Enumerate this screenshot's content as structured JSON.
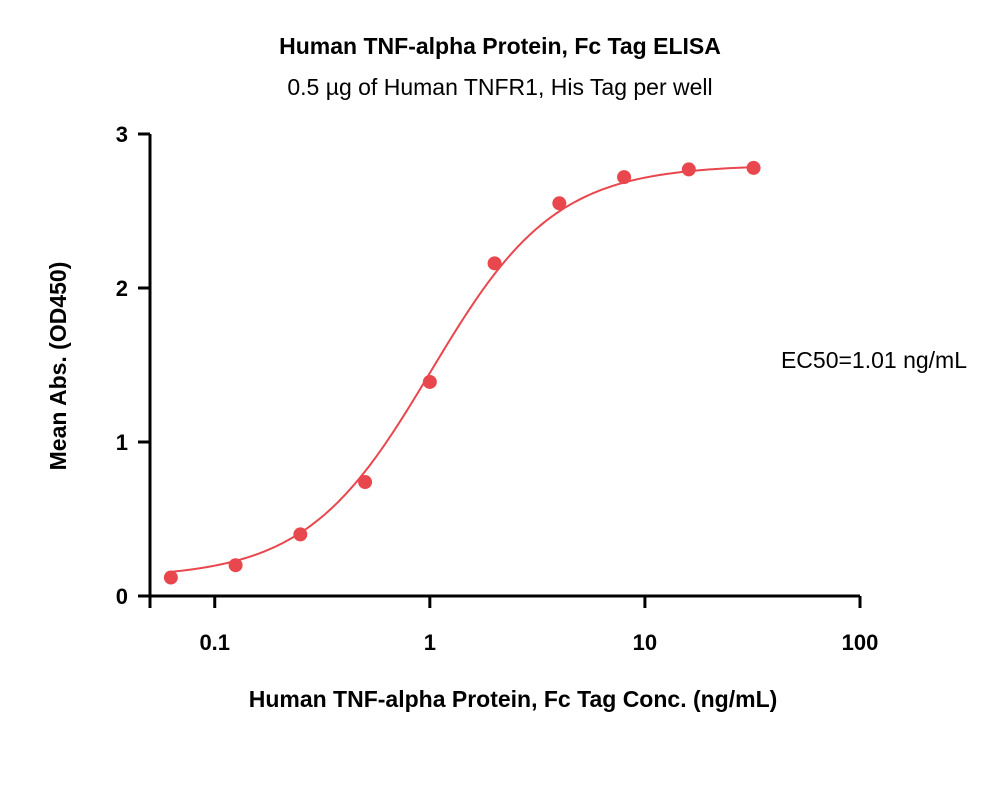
{
  "chart_data": {
    "type": "scatter",
    "title": "Human TNF-alpha Protein, Fc Tag ELISA",
    "subtitle": "0.5 µg of Human TNFR1, His Tag per well",
    "xlabel": "Human TNF-alpha Protein, Fc Tag Conc. (ng/mL)",
    "ylabel": "Mean Abs. (OD450)",
    "x_scale": "log",
    "xlim": [
      0.05,
      100
    ],
    "ylim": [
      0,
      3
    ],
    "x_ticks": [
      0.1,
      1,
      10,
      100
    ],
    "x_tick_labels": [
      "0.1",
      "1",
      "10",
      "100"
    ],
    "y_ticks": [
      0,
      1,
      2,
      3
    ],
    "y_tick_labels": [
      "0",
      "1",
      "2",
      "3"
    ],
    "grid": false,
    "series": [
      {
        "x": [
          0.0625,
          0.125,
          0.25,
          0.5,
          1,
          2,
          4,
          8,
          16,
          32
        ],
        "y": [
          0.12,
          0.2,
          0.4,
          0.74,
          1.39,
          2.16,
          2.55,
          2.72,
          2.77,
          2.78
        ],
        "color": "#e8474e",
        "fit": "4PL"
      }
    ],
    "annotations": [
      {
        "text": "EC50=1.01 ng/mL"
      }
    ]
  }
}
